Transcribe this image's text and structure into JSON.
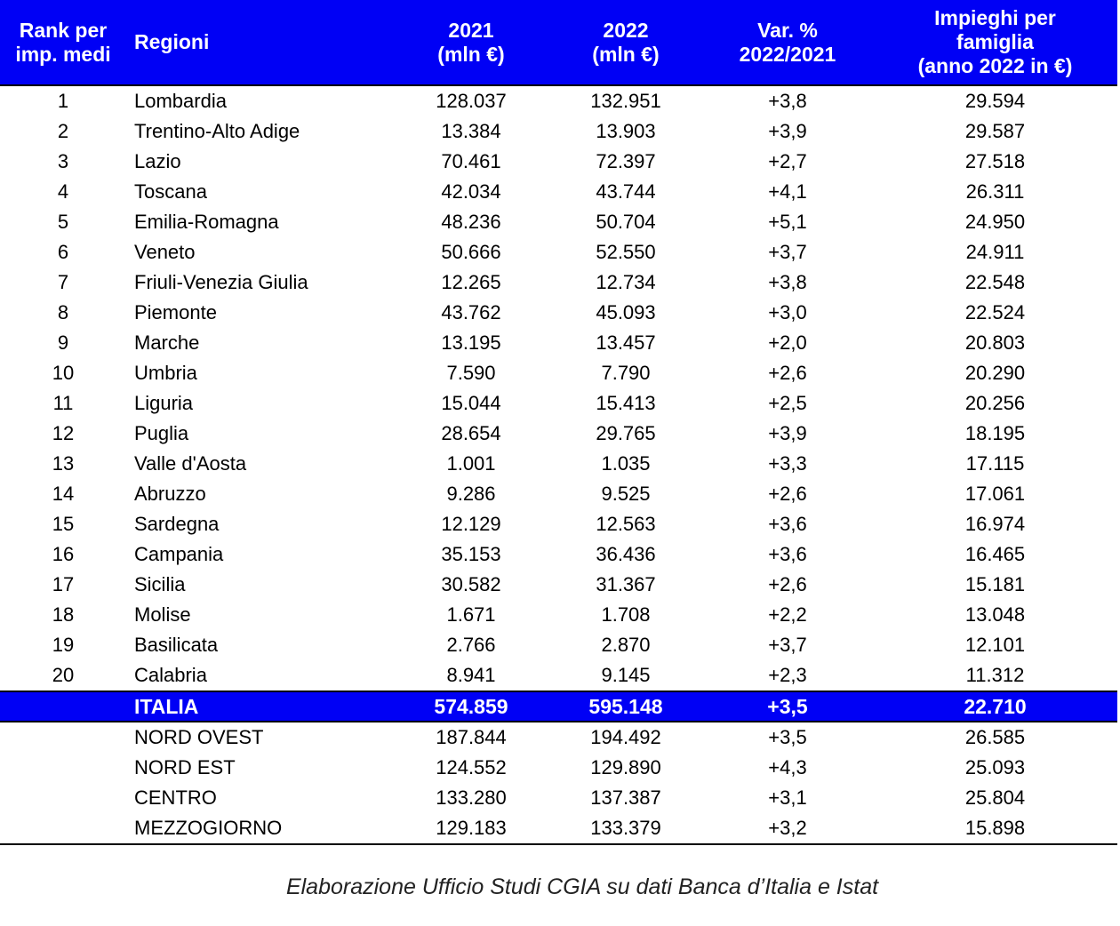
{
  "header": {
    "rank": [
      "Rank per",
      "imp. medi"
    ],
    "region": "Regioni",
    "y2021": [
      "2021",
      "(mln €)"
    ],
    "y2022": [
      "2022",
      "(mln €)"
    ],
    "var": [
      "Var. %",
      "2022/2021"
    ],
    "per_family": [
      "Impieghi per",
      "famiglia",
      "(anno 2022 in €)"
    ]
  },
  "rows": [
    [
      "1",
      "Lombardia",
      "128.037",
      "132.951",
      "+3,8",
      "29.594"
    ],
    [
      "2",
      "Trentino-Alto Adige",
      "13.384",
      "13.903",
      "+3,9",
      "29.587"
    ],
    [
      "3",
      "Lazio",
      "70.461",
      "72.397",
      "+2,7",
      "27.518"
    ],
    [
      "4",
      "Toscana",
      "42.034",
      "43.744",
      "+4,1",
      "26.311"
    ],
    [
      "5",
      "Emilia-Romagna",
      "48.236",
      "50.704",
      "+5,1",
      "24.950"
    ],
    [
      "6",
      "Veneto",
      "50.666",
      "52.550",
      "+3,7",
      "24.911"
    ],
    [
      "7",
      "Friuli-Venezia Giulia",
      "12.265",
      "12.734",
      "+3,8",
      "22.548"
    ],
    [
      "8",
      "Piemonte",
      "43.762",
      "45.093",
      "+3,0",
      "22.524"
    ],
    [
      "9",
      "Marche",
      "13.195",
      "13.457",
      "+2,0",
      "20.803"
    ],
    [
      "10",
      "Umbria",
      "7.590",
      "7.790",
      "+2,6",
      "20.290"
    ],
    [
      "11",
      "Liguria",
      "15.044",
      "15.413",
      "+2,5",
      "20.256"
    ],
    [
      "12",
      "Puglia",
      "28.654",
      "29.765",
      "+3,9",
      "18.195"
    ],
    [
      "13",
      "Valle d'Aosta",
      "1.001",
      "1.035",
      "+3,3",
      "17.115"
    ],
    [
      "14",
      "Abruzzo",
      "9.286",
      "9.525",
      "+2,6",
      "17.061"
    ],
    [
      "15",
      "Sardegna",
      "12.129",
      "12.563",
      "+3,6",
      "16.974"
    ],
    [
      "16",
      "Campania",
      "35.153",
      "36.436",
      "+3,6",
      "16.465"
    ],
    [
      "17",
      "Sicilia",
      "30.582",
      "31.367",
      "+2,6",
      "15.181"
    ],
    [
      "18",
      "Molise",
      "1.671",
      "1.708",
      "+2,2",
      "13.048"
    ],
    [
      "19",
      "Basilicata",
      "2.766",
      "2.870",
      "+3,7",
      "12.101"
    ],
    [
      "20",
      "Calabria",
      "8.941",
      "9.145",
      "+2,3",
      "11.312"
    ]
  ],
  "total": [
    "",
    "ITALIA",
    "574.859",
    "595.148",
    "+3,5",
    "22.710"
  ],
  "areas": [
    [
      "",
      "NORD OVEST",
      "187.844",
      "194.492",
      "+3,5",
      "26.585"
    ],
    [
      "",
      "NORD EST",
      "124.552",
      "129.890",
      "+4,3",
      "25.093"
    ],
    [
      "",
      "CENTRO",
      "133.280",
      "137.387",
      "+3,1",
      "25.804"
    ],
    [
      "",
      "MEZZOGIORNO",
      "129.183",
      "133.379",
      "+3,2",
      "15.898"
    ]
  ],
  "caption": "Elaborazione Ufficio Studi CGIA su dati Banca d’Italia e Istat",
  "colors": {
    "header_bg": "#0000f5",
    "header_text": "#ffffff"
  }
}
